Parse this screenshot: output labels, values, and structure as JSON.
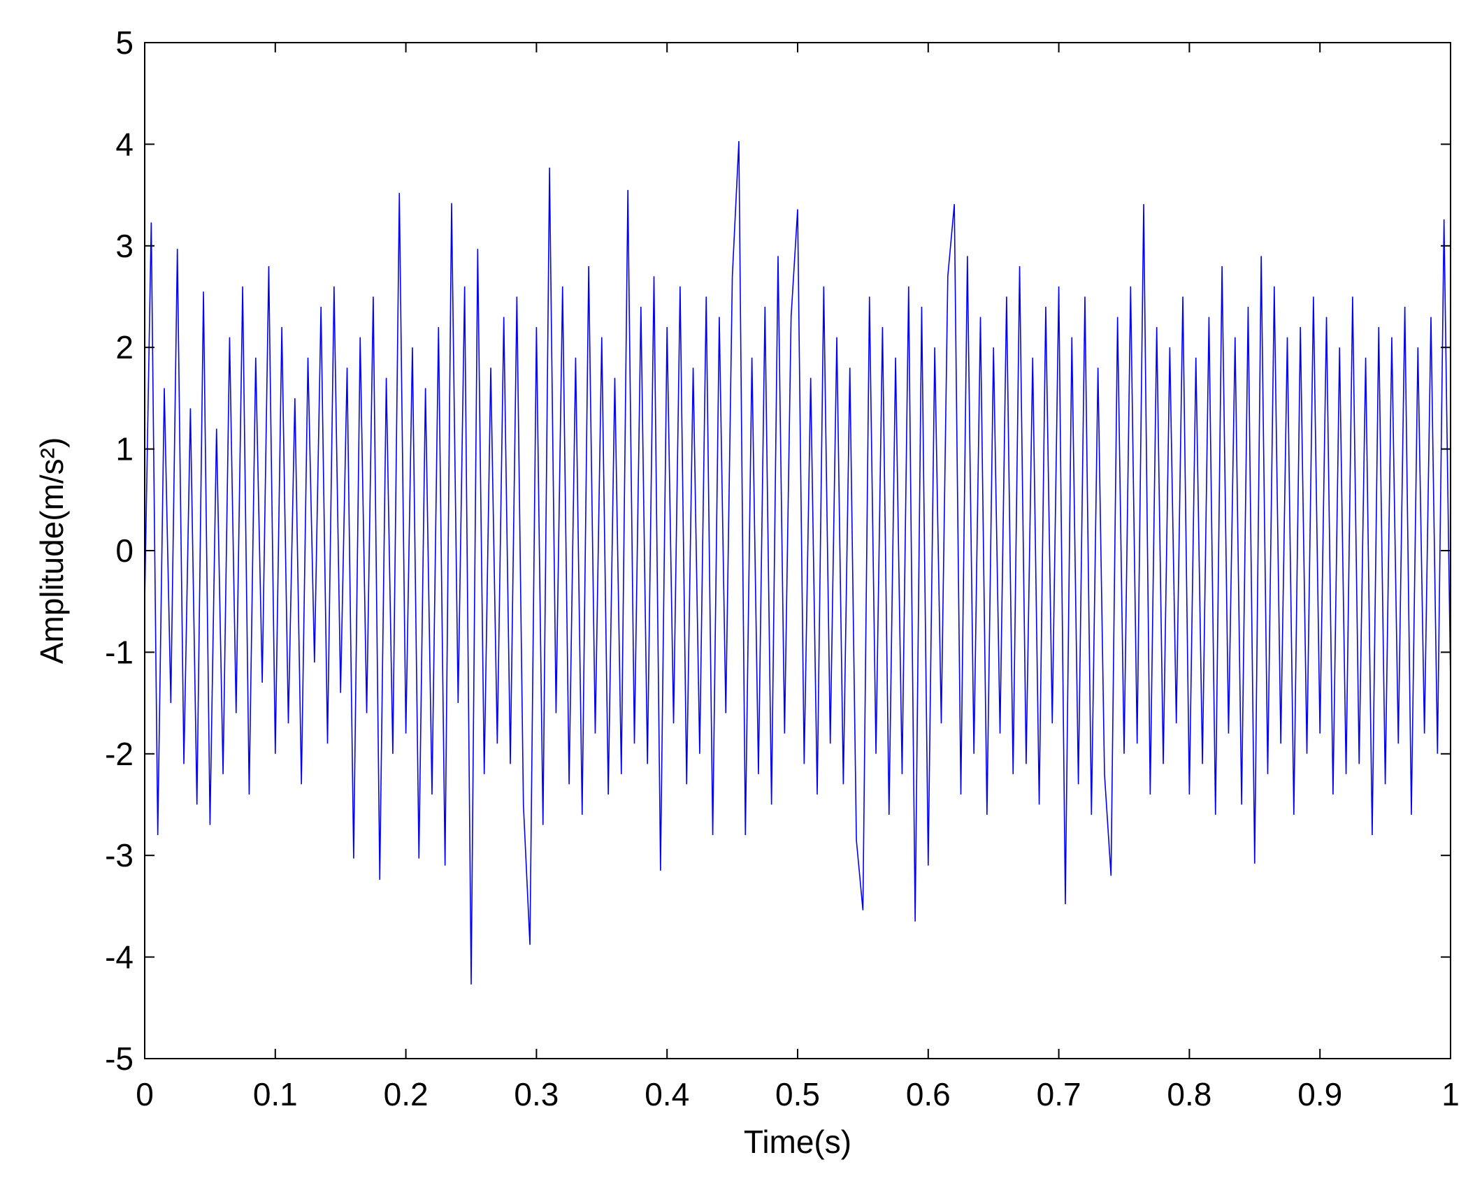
{
  "chart_data": {
    "type": "line",
    "xlabel": "Time(s)",
    "ylabel": "Amplitude(m/s²)",
    "xlim": [
      0,
      1
    ],
    "ylim": [
      -5,
      5
    ],
    "xticks": [
      0,
      0.1,
      0.2,
      0.3,
      0.4,
      0.5,
      0.6,
      0.7,
      0.8,
      0.9,
      1
    ],
    "yticks": [
      -5,
      -4,
      -3,
      -2,
      -1,
      0,
      1,
      2,
      3,
      4,
      5
    ],
    "grid": false,
    "x": [
      0,
      0.005,
      0.01,
      0.015,
      0.02,
      0.025,
      0.03,
      0.035,
      0.04,
      0.045,
      0.05,
      0.055,
      0.06,
      0.065,
      0.07,
      0.075,
      0.08,
      0.085,
      0.09,
      0.095,
      0.1,
      0.105,
      0.11,
      0.115,
      0.12,
      0.125,
      0.13,
      0.135,
      0.14,
      0.145,
      0.15,
      0.155,
      0.16,
      0.165,
      0.17,
      0.175,
      0.18,
      0.185,
      0.19,
      0.195,
      0.2,
      0.205,
      0.21,
      0.215,
      0.22,
      0.225,
      0.23,
      0.235,
      0.24,
      0.245,
      0.25,
      0.255,
      0.26,
      0.265,
      0.27,
      0.275,
      0.28,
      0.285,
      0.29,
      0.295,
      0.3,
      0.305,
      0.31,
      0.315,
      0.32,
      0.325,
      0.33,
      0.335,
      0.34,
      0.345,
      0.35,
      0.355,
      0.36,
      0.365,
      0.37,
      0.375,
      0.38,
      0.385,
      0.39,
      0.395,
      0.4,
      0.405,
      0.41,
      0.415,
      0.42,
      0.425,
      0.43,
      0.435,
      0.44,
      0.445,
      0.45,
      0.455,
      0.46,
      0.465,
      0.47,
      0.475,
      0.48,
      0.485,
      0.49,
      0.495,
      0.5,
      0.505,
      0.51,
      0.515,
      0.52,
      0.525,
      0.53,
      0.535,
      0.54,
      0.545,
      0.55,
      0.555,
      0.56,
      0.565,
      0.57,
      0.575,
      0.58,
      0.585,
      0.59,
      0.595,
      0.6,
      0.605,
      0.61,
      0.615,
      0.62,
      0.625,
      0.63,
      0.635,
      0.64,
      0.645,
      0.65,
      0.655,
      0.66,
      0.665,
      0.67,
      0.675,
      0.68,
      0.685,
      0.69,
      0.695,
      0.7,
      0.705,
      0.71,
      0.715,
      0.72,
      0.725,
      0.73,
      0.735,
      0.74,
      0.745,
      0.75,
      0.755,
      0.76,
      0.765,
      0.77,
      0.775,
      0.78,
      0.785,
      0.79,
      0.795,
      0.8,
      0.805,
      0.81,
      0.815,
      0.82,
      0.825,
      0.83,
      0.835,
      0.84,
      0.845,
      0.85,
      0.855,
      0.86,
      0.865,
      0.87,
      0.875,
      0.88,
      0.885,
      0.89,
      0.895,
      0.9,
      0.905,
      0.91,
      0.915,
      0.92,
      0.925,
      0.93,
      0.935,
      0.94,
      0.945,
      0.95,
      0.955,
      0.96,
      0.965,
      0.97,
      0.975,
      0.98,
      0.985,
      0.99,
      0.995,
      1
    ],
    "series": [
      {
        "color": "#0000ff",
        "values": [
          -0.5,
          3.23,
          -2.8,
          1.6,
          -1.5,
          2.97,
          -2.1,
          1.4,
          -2.5,
          2.55,
          -2.7,
          1.2,
          -2.2,
          2.1,
          -1.6,
          2.6,
          -2.4,
          1.9,
          -1.3,
          2.8,
          -2.0,
          2.2,
          -1.7,
          1.5,
          -2.3,
          1.9,
          -1.1,
          2.4,
          -1.9,
          2.6,
          -1.4,
          1.8,
          -3.03,
          2.1,
          -1.6,
          2.5,
          -3.24,
          1.7,
          -2.0,
          3.52,
          -1.8,
          2.0,
          -3.03,
          1.6,
          -2.4,
          2.2,
          -3.1,
          3.42,
          -1.5,
          2.6,
          -4.27,
          2.97,
          -2.2,
          1.8,
          -1.9,
          2.3,
          -2.1,
          2.5,
          -2.5,
          -3.88,
          2.2,
          -2.7,
          3.77,
          -1.6,
          2.6,
          -2.3,
          1.9,
          -2.6,
          2.8,
          -1.8,
          2.1,
          -2.4,
          1.7,
          -2.2,
          3.55,
          -1.9,
          2.4,
          -2.1,
          2.7,
          -3.15,
          2.2,
          -1.7,
          2.6,
          -2.3,
          1.8,
          -2.0,
          2.5,
          -2.8,
          2.3,
          -1.6,
          2.7,
          4.03,
          -2.8,
          1.9,
          -2.2,
          2.4,
          -2.5,
          2.9,
          -1.8,
          2.3,
          3.36,
          -2.1,
          1.7,
          -2.4,
          2.6,
          -1.9,
          2.1,
          -2.3,
          1.8,
          -2.85,
          -3.54,
          2.5,
          -2.0,
          2.2,
          -2.6,
          1.9,
          -2.2,
          2.6,
          -3.65,
          2.4,
          -3.1,
          2.0,
          -1.7,
          2.7,
          3.41,
          -2.4,
          2.9,
          -2.0,
          2.3,
          -2.6,
          2.0,
          -1.8,
          2.5,
          -2.2,
          2.8,
          -2.1,
          1.9,
          -2.5,
          2.4,
          -1.7,
          2.6,
          -3.48,
          2.1,
          -2.3,
          2.5,
          -2.6,
          1.8,
          -2.2,
          -3.2,
          2.3,
          -2.0,
          2.6,
          -1.9,
          3.41,
          -2.4,
          2.2,
          -2.1,
          2.0,
          -1.7,
          2.5,
          -2.4,
          1.9,
          -2.1,
          2.3,
          -2.6,
          2.8,
          -1.8,
          2.1,
          -2.5,
          2.4,
          -3.08,
          2.9,
          -2.2,
          2.6,
          -1.9,
          2.1,
          -2.6,
          2.2,
          -2.0,
          2.5,
          -1.8,
          2.3,
          -2.4,
          2.0,
          -2.2,
          2.5,
          -2.1,
          1.9,
          -2.8,
          2.2,
          -2.3,
          2.1,
          -1.9,
          2.4,
          -2.6,
          2.0,
          -1.8,
          2.3,
          -2.0,
          3.26,
          -1.3
        ]
      }
    ]
  }
}
